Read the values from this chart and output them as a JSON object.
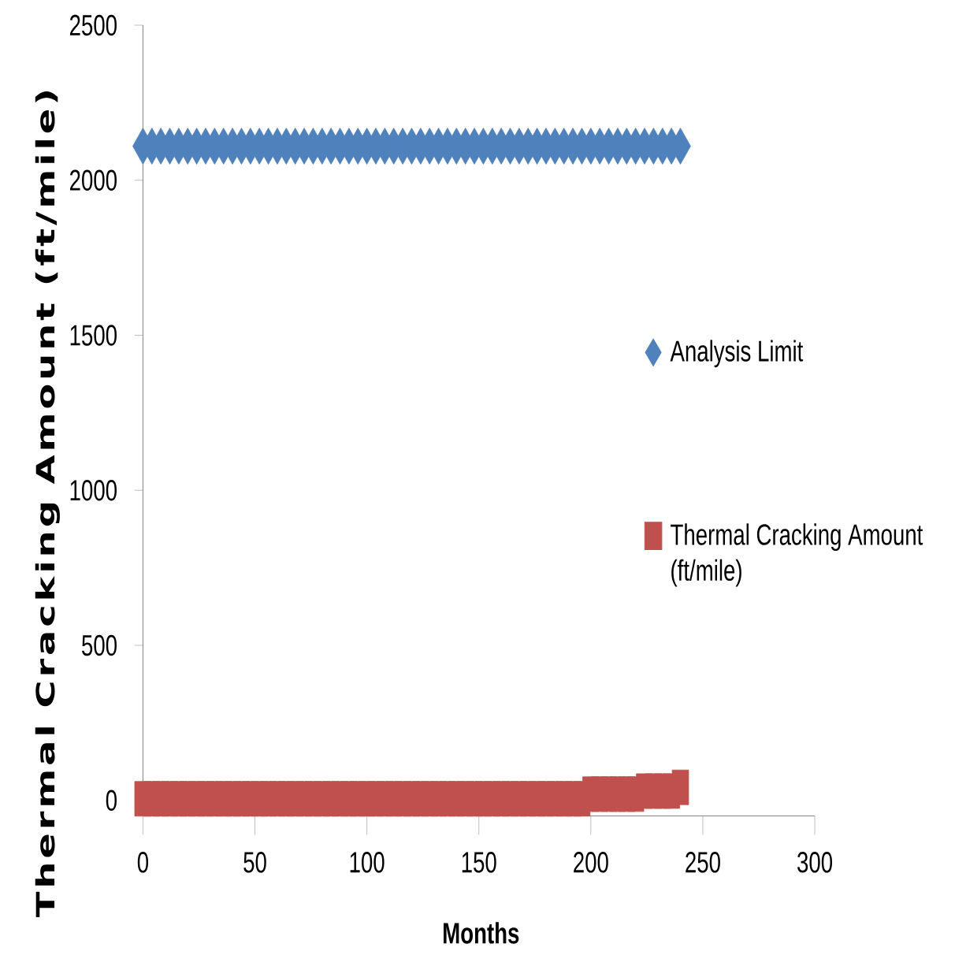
{
  "chart_data": {
    "type": "scatter",
    "xlabel": "Months",
    "ylabel": "Thermal Cracking Amount (ft/mile)",
    "xlim": [
      0,
      300
    ],
    "xticks": [
      0,
      50,
      100,
      150,
      200,
      250,
      300
    ],
    "ylim": [
      -50,
      2500
    ],
    "yticks": [
      0,
      500,
      1000,
      1500,
      2000,
      2500
    ],
    "legend": "right",
    "x": [
      0,
      4,
      8,
      12,
      16,
      20,
      24,
      28,
      32,
      36,
      40,
      44,
      48,
      52,
      56,
      60,
      64,
      68,
      72,
      76,
      80,
      84,
      88,
      92,
      96,
      100,
      104,
      108,
      112,
      116,
      120,
      124,
      128,
      132,
      136,
      140,
      144,
      148,
      152,
      156,
      160,
      164,
      168,
      172,
      176,
      180,
      184,
      188,
      192,
      196,
      200,
      204,
      208,
      212,
      216,
      220,
      224,
      228,
      232,
      236,
      240
    ],
    "series": [
      {
        "name": "Analysis Limit",
        "color": "#4f81bd",
        "marker": "diamond",
        "values": [
          2110,
          2110,
          2110,
          2110,
          2110,
          2110,
          2110,
          2110,
          2110,
          2110,
          2110,
          2110,
          2110,
          2110,
          2110,
          2110,
          2110,
          2110,
          2110,
          2110,
          2110,
          2110,
          2110,
          2110,
          2110,
          2110,
          2110,
          2110,
          2110,
          2110,
          2110,
          2110,
          2110,
          2110,
          2110,
          2110,
          2110,
          2110,
          2110,
          2110,
          2110,
          2110,
          2110,
          2110,
          2110,
          2110,
          2110,
          2110,
          2110,
          2110,
          2110,
          2110,
          2110,
          2110,
          2110,
          2110,
          2110,
          2110,
          2110,
          2110,
          2110
        ]
      },
      {
        "name": "Thermal Cracking Amount (ft/mile)",
        "color": "#c0504d",
        "marker": "square",
        "values": [
          5,
          5,
          5,
          5,
          5,
          5,
          5,
          5,
          5,
          5,
          5,
          5,
          5,
          5,
          5,
          5,
          5,
          5,
          5,
          5,
          5,
          5,
          5,
          5,
          5,
          5,
          5,
          5,
          5,
          5,
          5,
          5,
          5,
          5,
          5,
          5,
          5,
          5,
          5,
          5,
          5,
          5,
          5,
          5,
          5,
          5,
          5,
          5,
          5,
          5,
          20,
          20,
          20,
          20,
          20,
          20,
          30,
          30,
          30,
          30,
          42
        ]
      }
    ]
  }
}
